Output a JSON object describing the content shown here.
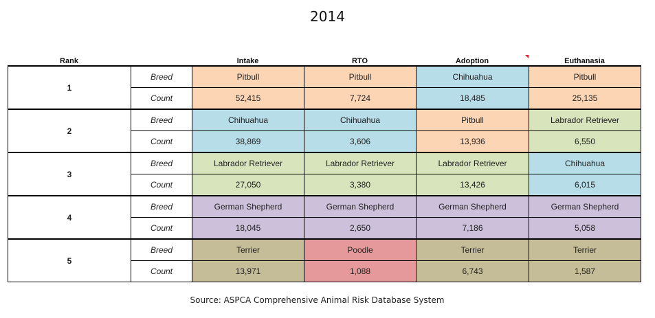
{
  "title": "2014",
  "headers": {
    "rank": "Rank",
    "intake": "Intake",
    "rto": "RTO",
    "adoption": "Adoption",
    "euthanasia": "Euthanasia"
  },
  "row_labels": {
    "breed": "Breed",
    "count": "Count"
  },
  "colors": {
    "Pitbull": "#fcd5b5",
    "Chihuahua": "#b7dde8",
    "Labrador Retriever": "#d7e4bc",
    "German Shepherd": "#ccc0da",
    "Terrier": "#c4bd97",
    "Poodle": "#e6999a"
  },
  "ranks": [
    {
      "rank": "1",
      "intake": {
        "breed": "Pitbull",
        "count": "52,415"
      },
      "rto": {
        "breed": "Pitbull",
        "count": "7,724"
      },
      "adoption": {
        "breed": "Chihuahua",
        "count": "18,485"
      },
      "euthanasia": {
        "breed": "Pitbull",
        "count": "25,135"
      }
    },
    {
      "rank": "2",
      "intake": {
        "breed": "Chihuahua",
        "count": "38,869"
      },
      "rto": {
        "breed": "Chihuahua",
        "count": "3,606"
      },
      "adoption": {
        "breed": "Pitbull",
        "count": "13,936"
      },
      "euthanasia": {
        "breed": "Labrador Retriever",
        "count": "6,550"
      }
    },
    {
      "rank": "3",
      "intake": {
        "breed": "Labrador Retriever",
        "count": "27,050"
      },
      "rto": {
        "breed": "Labrador Retriever",
        "count": "3,380"
      },
      "adoption": {
        "breed": "Labrador Retriever",
        "count": "13,426"
      },
      "euthanasia": {
        "breed": "Chihuahua",
        "count": "6,015"
      }
    },
    {
      "rank": "4",
      "intake": {
        "breed": "German Shepherd",
        "count": "18,045"
      },
      "rto": {
        "breed": "German Shepherd",
        "count": "2,650"
      },
      "adoption": {
        "breed": "German Shepherd",
        "count": "7,186"
      },
      "euthanasia": {
        "breed": "German Shepherd",
        "count": "5,058"
      }
    },
    {
      "rank": "5",
      "intake": {
        "breed": "Terrier",
        "count": "13,971"
      },
      "rto": {
        "breed": "Poodle",
        "count": "1,088"
      },
      "adoption": {
        "breed": "Terrier",
        "count": "6,743"
      },
      "euthanasia": {
        "breed": "Terrier",
        "count": "1,587"
      }
    }
  ],
  "source": "Source: ASPCA Comprehensive Animal Risk Database System"
}
